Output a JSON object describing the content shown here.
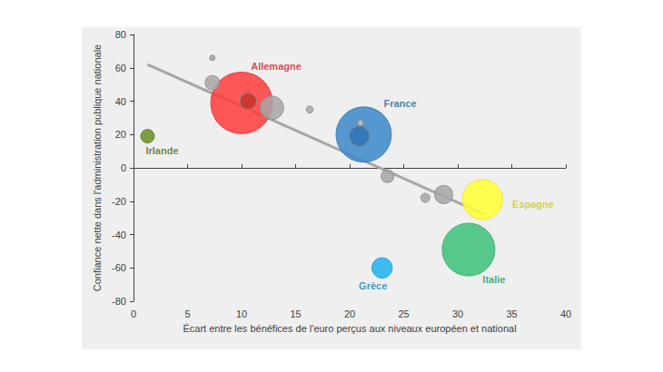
{
  "chart_data": {
    "type": "scatter",
    "x_label": "Écart entre les bénéfices de l'euro perçus aux niveaux européen et national",
    "y_label": "Confiance nette dans l'administration publique nationale",
    "xlim": [
      0,
      40
    ],
    "xticks": [
      0,
      5,
      10,
      15,
      20,
      25,
      30,
      35,
      40
    ],
    "ylim": [
      -80,
      80
    ],
    "yticks": [
      -80,
      -60,
      -40,
      -20,
      0,
      20,
      40,
      60,
      80
    ],
    "grid": false,
    "x": [
      10,
      21.3,
      31,
      32.3,
      12.8,
      23,
      28.7,
      20.9,
      10.6,
      7.3,
      1.3,
      23.5,
      27,
      16.3,
      7.3,
      21
    ],
    "values": [
      39,
      20,
      -49,
      -19,
      36,
      -60,
      -16,
      19,
      40,
      51,
      19,
      -5,
      -18,
      35,
      66,
      27
    ],
    "sizes": [
      82,
      66,
      60,
      35,
      12,
      9,
      7,
      9,
      6,
      4.5,
      4,
      3.5,
      1.8,
      1.1,
      0.6,
      0.6
    ],
    "labels": [
      "Allemagne",
      "France",
      "Italie",
      "Espagne",
      null,
      "Grèce",
      null,
      null,
      null,
      null,
      "Irlande",
      null,
      null,
      null,
      null,
      null
    ],
    "colors": [
      "#ff3b3b",
      "#3a87c8",
      "#3dbf78",
      "#ffff33",
      "#a6a6a6",
      "#1fb0ef",
      "#a6a6a6",
      "#2f72b0",
      "#c8302c",
      "#a6a6a6",
      "#6b8e23",
      "#a6a6a6",
      "#a6a6a6",
      "#a6a6a6",
      "#a6a6a6",
      "#c8c8c8"
    ],
    "trend": {
      "x": [
        1.3,
        32.5
      ],
      "y": [
        62,
        -28
      ]
    }
  }
}
